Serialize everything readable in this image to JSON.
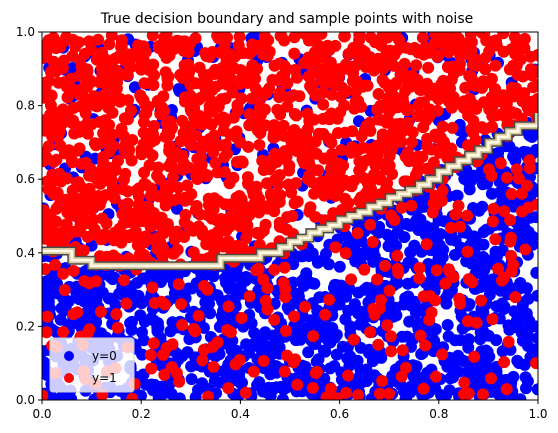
{
  "chart_data": {
    "type": "scatter",
    "title": "True decision boundary  and sample points with noise",
    "xlabel": "",
    "ylabel": "",
    "xlim": [
      0,
      1
    ],
    "ylim": [
      0,
      1
    ],
    "xticks": [
      "0.0",
      "0.2",
      "0.4",
      "0.6",
      "0.8",
      "1.0"
    ],
    "yticks": [
      "0.0",
      "0.2",
      "0.4",
      "0.6",
      "0.8",
      "1.0"
    ],
    "grid": false,
    "legend_position": "lower-left",
    "series": [
      {
        "name": "y=0",
        "color": "#0000ff",
        "marker": "circle",
        "n_points_approx": 3000,
        "distribution": "mostly below decision boundary, sparse noise above"
      },
      {
        "name": "y=1",
        "color": "#ff0000",
        "marker": "circle",
        "n_points_approx": 3000,
        "distribution": "mostly above decision boundary, sparse noise below"
      }
    ],
    "decision_boundary": {
      "style": "staircase contour band",
      "colors": [
        "#4a4a4a",
        "#d9c9a0",
        "#fffbe6"
      ],
      "x": [
        0.0,
        0.04,
        0.06,
        0.1,
        0.14,
        0.34,
        0.36,
        0.42,
        0.44,
        0.48,
        0.5,
        0.52,
        0.54,
        0.56,
        0.58,
        0.6,
        0.62,
        0.64,
        0.66,
        0.68,
        0.7,
        0.72,
        0.74,
        0.76,
        0.78,
        0.8,
        0.82,
        0.84,
        0.86,
        0.88,
        0.9,
        0.92,
        0.94,
        0.96,
        1.0
      ],
      "y": [
        0.405,
        0.405,
        0.38,
        0.365,
        0.365,
        0.365,
        0.385,
        0.385,
        0.4,
        0.415,
        0.43,
        0.44,
        0.455,
        0.465,
        0.475,
        0.49,
        0.5,
        0.51,
        0.525,
        0.535,
        0.55,
        0.56,
        0.57,
        0.585,
        0.6,
        0.62,
        0.635,
        0.65,
        0.665,
        0.68,
        0.7,
        0.715,
        0.73,
        0.745,
        0.78
      ]
    }
  }
}
